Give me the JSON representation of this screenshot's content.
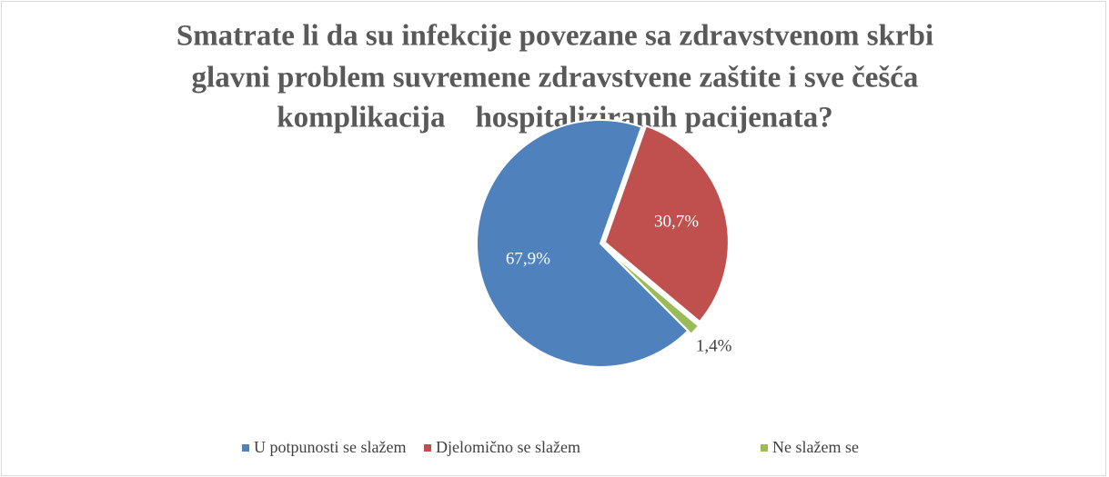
{
  "chart_data": {
    "type": "pie",
    "title": [
      "Smatrate li da su infekcije povezane sa zdravstvenom skrbi",
      "glavni problem suvremene zdravstvene zaštite i sve češća",
      "komplikacija    hospitaliziranih pacijenata?"
    ],
    "categories": [
      "U potpunosti se slažem",
      "Djelomično se slažem",
      "Ne slažem se"
    ],
    "values": [
      67.9,
      30.7,
      1.4
    ],
    "value_labels": [
      "67,9%",
      "30,7%",
      "1,4%"
    ],
    "colors": [
      "#4f81bd",
      "#c0504d",
      "#9bbb59"
    ],
    "legend": "bottom"
  }
}
